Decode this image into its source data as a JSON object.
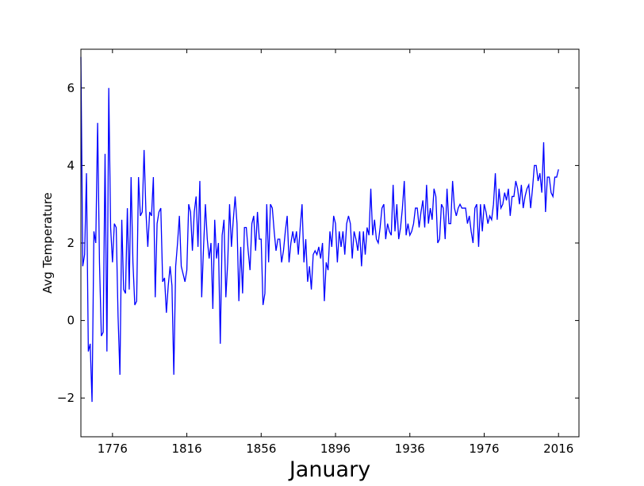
{
  "chart_data": {
    "type": "line",
    "xlabel": "January",
    "ylabel": "Avg Temperature",
    "x": [
      1759,
      1760,
      1761,
      1762,
      1763,
      1764,
      1765,
      1766,
      1767,
      1768,
      1769,
      1770,
      1771,
      1772,
      1773,
      1774,
      1775,
      1776,
      1777,
      1778,
      1779,
      1780,
      1781,
      1782,
      1783,
      1784,
      1785,
      1786,
      1787,
      1788,
      1789,
      1790,
      1791,
      1792,
      1793,
      1794,
      1795,
      1796,
      1797,
      1798,
      1799,
      1800,
      1801,
      1802,
      1803,
      1804,
      1805,
      1806,
      1807,
      1808,
      1809,
      1810,
      1811,
      1812,
      1813,
      1814,
      1815,
      1816,
      1817,
      1818,
      1819,
      1820,
      1821,
      1822,
      1823,
      1824,
      1825,
      1826,
      1827,
      1828,
      1829,
      1830,
      1831,
      1832,
      1833,
      1834,
      1835,
      1836,
      1837,
      1838,
      1839,
      1840,
      1841,
      1842,
      1843,
      1844,
      1845,
      1846,
      1847,
      1848,
      1849,
      1850,
      1851,
      1852,
      1853,
      1854,
      1855,
      1856,
      1857,
      1858,
      1859,
      1860,
      1861,
      1862,
      1863,
      1864,
      1865,
      1866,
      1867,
      1868,
      1869,
      1870,
      1871,
      1872,
      1873,
      1874,
      1875,
      1876,
      1877,
      1878,
      1879,
      1880,
      1881,
      1882,
      1883,
      1884,
      1885,
      1886,
      1887,
      1888,
      1889,
      1890,
      1891,
      1892,
      1893,
      1894,
      1895,
      1896,
      1897,
      1898,
      1899,
      1900,
      1901,
      1902,
      1903,
      1904,
      1905,
      1906,
      1907,
      1908,
      1909,
      1910,
      1911,
      1912,
      1913,
      1914,
      1915,
      1916,
      1917,
      1918,
      1919,
      1920,
      1921,
      1922,
      1923,
      1924,
      1925,
      1926,
      1927,
      1928,
      1929,
      1930,
      1931,
      1932,
      1933,
      1934,
      1935,
      1936,
      1937,
      1938,
      1939,
      1940,
      1941,
      1942,
      1943,
      1944,
      1945,
      1946,
      1947,
      1948,
      1949,
      1950,
      1951,
      1952,
      1953,
      1954,
      1955,
      1956,
      1957,
      1958,
      1959,
      1960,
      1961,
      1962,
      1963,
      1964,
      1965,
      1966,
      1967,
      1968,
      1969,
      1970,
      1971,
      1972,
      1973,
      1974,
      1975,
      1976,
      1977,
      1978,
      1979,
      1980,
      1981,
      1982,
      1983,
      1984,
      1985,
      1986,
      1987,
      1988,
      1989,
      1990,
      1991,
      1992,
      1993,
      1994,
      1995,
      1996,
      1997,
      1998,
      1999,
      2000,
      2001,
      2002,
      2003,
      2004,
      2005,
      2006,
      2007,
      2008,
      2009,
      2010,
      2011,
      2012,
      2013,
      2014,
      2015,
      2016
    ],
    "series": [
      {
        "color": "#0000ff",
        "values": [
          6.8,
          1.4,
          1.7,
          3.8,
          -0.8,
          -0.6,
          -2.1,
          2.3,
          2.0,
          5.1,
          1.5,
          -0.4,
          -0.3,
          4.3,
          -0.8,
          6.0,
          2.4,
          1.5,
          2.5,
          2.4,
          0.1,
          -1.4,
          2.6,
          0.8,
          0.7,
          2.9,
          0.8,
          3.7,
          1.5,
          0.4,
          0.5,
          3.7,
          2.7,
          2.8,
          4.4,
          2.8,
          1.9,
          2.8,
          2.7,
          3.7,
          0.6,
          2.5,
          2.8,
          2.9,
          1.0,
          1.1,
          0.2,
          0.9,
          1.4,
          0.9,
          -1.4,
          1.4,
          2.0,
          2.7,
          1.4,
          1.2,
          1.0,
          1.3,
          3.0,
          2.8,
          1.8,
          2.8,
          3.2,
          1.9,
          3.6,
          0.6,
          1.9,
          3.0,
          2.1,
          1.6,
          2.0,
          0.3,
          2.6,
          1.6,
          2.0,
          -0.6,
          2.2,
          2.6,
          0.6,
          1.5,
          3.0,
          1.9,
          2.6,
          3.2,
          2.5,
          0.5,
          1.9,
          0.7,
          2.4,
          2.4,
          1.8,
          1.3,
          2.5,
          2.7,
          1.8,
          2.8,
          2.1,
          2.1,
          0.4,
          0.7,
          3.0,
          1.5,
          3.0,
          2.9,
          2.3,
          1.8,
          2.1,
          2.1,
          1.5,
          1.8,
          2.3,
          2.7,
          1.5,
          2.0,
          2.3,
          2.0,
          2.3,
          1.7,
          2.4,
          3.0,
          1.5,
          2.1,
          1.0,
          1.4,
          0.8,
          1.7,
          1.8,
          1.7,
          1.9,
          1.6,
          2.0,
          0.5,
          1.5,
          1.3,
          2.3,
          1.9,
          2.7,
          2.5,
          1.5,
          2.3,
          1.9,
          2.3,
          1.7,
          2.5,
          2.7,
          2.5,
          1.6,
          2.3,
          2.1,
          1.8,
          2.3,
          1.4,
          2.3,
          1.7,
          2.4,
          2.2,
          3.4,
          2.2,
          2.6,
          2.1,
          2.0,
          2.4,
          2.9,
          3.0,
          2.1,
          2.5,
          2.3,
          2.2,
          3.5,
          2.3,
          3.0,
          2.1,
          2.4,
          2.9,
          3.6,
          2.2,
          2.5,
          2.2,
          2.3,
          2.5,
          2.9,
          2.9,
          2.4,
          2.8,
          3.1,
          2.4,
          3.5,
          2.5,
          2.9,
          2.6,
          3.4,
          3.2,
          2.0,
          2.1,
          3.0,
          2.9,
          2.1,
          3.4,
          2.5,
          2.5,
          3.6,
          2.9,
          2.7,
          2.9,
          3.0,
          2.9,
          2.9,
          2.9,
          2.5,
          2.7,
          2.3,
          2.0,
          2.9,
          3.0,
          1.9,
          3.0,
          2.3,
          3.0,
          2.8,
          2.5,
          2.7,
          2.6,
          3.0,
          3.8,
          2.6,
          3.4,
          2.9,
          3.0,
          3.3,
          3.1,
          3.4,
          2.7,
          3.2,
          3.2,
          3.6,
          3.4,
          3.0,
          3.5,
          2.9,
          3.2,
          3.4,
          3.5,
          2.9,
          3.4,
          4.0,
          4.0,
          3.6,
          3.8,
          3.3,
          4.6,
          2.8,
          3.7,
          3.7,
          3.3,
          3.2,
          3.7,
          3.7,
          3.9
        ]
      }
    ],
    "xlim": [
      1759,
      2027
    ],
    "xticks": [
      1776,
      1816,
      1856,
      1896,
      1936,
      1976,
      2016
    ],
    "ylim": [
      -3,
      7
    ],
    "yticks": [
      {
        "value": -2,
        "label": "−2"
      },
      0,
      2,
      4,
      6
    ]
  }
}
